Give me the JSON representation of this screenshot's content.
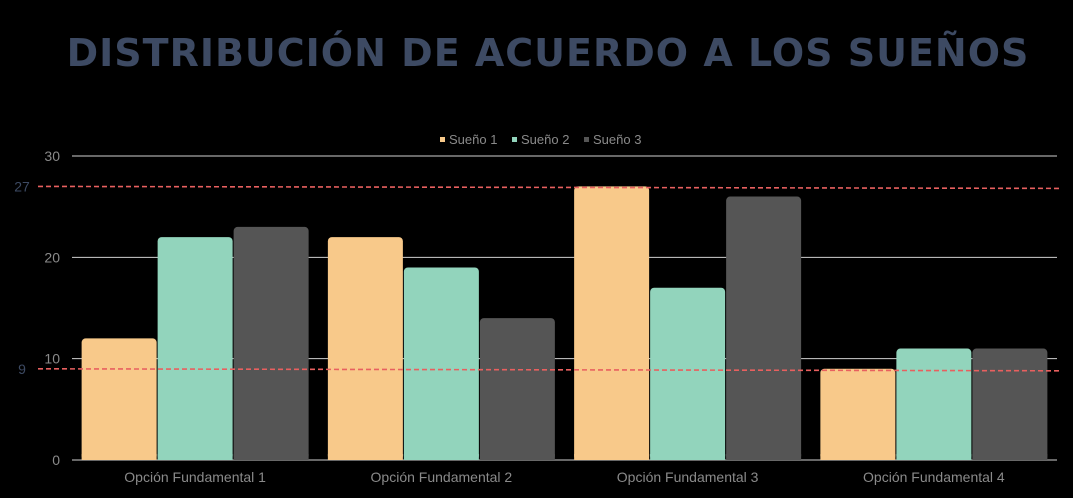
{
  "chart_data": {
    "type": "bar",
    "title": "DISTRIBUCIÓN DE ACUERDO A LOS SUEÑOS",
    "categories": [
      "Opción Fundamental 1",
      "Opción Fundamental 2",
      "Opción Fundamental 3",
      "Opción Fundamental 4"
    ],
    "series": [
      {
        "name": "Sueño 1",
        "color": "#f8c98a",
        "values": [
          12,
          22,
          27,
          9
        ]
      },
      {
        "name": "Sueño 2",
        "color": "#92d4bc",
        "values": [
          22,
          19,
          17,
          11
        ]
      },
      {
        "name": "Sueño 3",
        "color": "#555555",
        "values": [
          23,
          14,
          26,
          11
        ]
      }
    ],
    "ylim": [
      0,
      30
    ],
    "yticks": [
      0,
      10,
      20,
      30
    ],
    "grid": true,
    "legend_position": "top-center",
    "reference_lines": [
      {
        "value": 27,
        "label": "27",
        "color": "#e8605f"
      },
      {
        "value": 9,
        "label": "9",
        "color": "#e8605f"
      }
    ]
  }
}
